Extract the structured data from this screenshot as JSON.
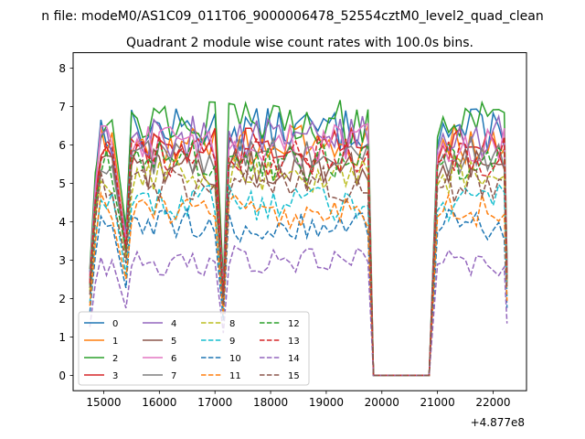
{
  "chart_data": {
    "type": "line",
    "suptitle": "n file: modeM0/AS1C09_011T06_9000006478_52554cztM0_level2_quad_clean",
    "title": "Quadrant 2 module wise count rates with 100.0s bins.",
    "xlabel": "",
    "ylabel": "",
    "x_offset_label": "+4.877e8",
    "xlim": [
      14450,
      22600
    ],
    "ylim": [
      -0.4,
      8.4
    ],
    "xticks": [
      {
        "value": 15000,
        "label": "15000"
      },
      {
        "value": 16000,
        "label": "16000"
      },
      {
        "value": 17000,
        "label": "17000"
      },
      {
        "value": 18000,
        "label": "18000"
      },
      {
        "value": 19000,
        "label": "19000"
      },
      {
        "value": 20000,
        "label": "20000"
      },
      {
        "value": 21000,
        "label": "21000"
      },
      {
        "value": 22000,
        "label": "22000"
      }
    ],
    "yticks": [
      {
        "value": 0,
        "label": "0"
      },
      {
        "value": 1,
        "label": "1"
      },
      {
        "value": 2,
        "label": "2"
      },
      {
        "value": 3,
        "label": "3"
      },
      {
        "value": 4,
        "label": "4"
      },
      {
        "value": 5,
        "label": "5"
      },
      {
        "value": 6,
        "label": "6"
      },
      {
        "value": 7,
        "label": "7"
      },
      {
        "value": 8,
        "label": "8"
      }
    ],
    "grid": false,
    "legend_position": "lower-left",
    "legend_columns": 4,
    "series": [
      {
        "name": "0",
        "color": "#1f77b4",
        "dash": "solid",
        "level": 6.4
      },
      {
        "name": "1",
        "color": "#ff7f0e",
        "dash": "solid",
        "level": 6.0
      },
      {
        "name": "2",
        "color": "#2ca02c",
        "dash": "solid",
        "level": 6.6
      },
      {
        "name": "3",
        "color": "#d62728",
        "dash": "solid",
        "level": 5.9
      },
      {
        "name": "4",
        "color": "#9467bd",
        "dash": "solid",
        "level": 6.2
      },
      {
        "name": "5",
        "color": "#8c564b",
        "dash": "solid",
        "level": 5.4
      },
      {
        "name": "6",
        "color": "#e377c2",
        "dash": "solid",
        "level": 6.0
      },
      {
        "name": "7",
        "color": "#7f7f7f",
        "dash": "solid",
        "level": 5.7
      },
      {
        "name": "8",
        "color": "#bcbd22",
        "dash": "dashed",
        "level": 5.2
      },
      {
        "name": "9",
        "color": "#17becf",
        "dash": "dashed",
        "level": 4.5
      },
      {
        "name": "10",
        "color": "#1f77b4",
        "dash": "dashed",
        "level": 3.9
      },
      {
        "name": "11",
        "color": "#ff7f0e",
        "dash": "dashed",
        "level": 4.3
      },
      {
        "name": "12",
        "color": "#2ca02c",
        "dash": "dashed",
        "level": 5.6
      },
      {
        "name": "13",
        "color": "#d62728",
        "dash": "dashed",
        "level": 5.7
      },
      {
        "name": "14",
        "color": "#9467bd",
        "dash": "dashed",
        "level": 3.0
      },
      {
        "name": "15",
        "color": "#8c564b",
        "dash": "dashed",
        "level": 5.0
      }
    ],
    "segments": [
      {
        "x_start": 14750,
        "x_end": 15200,
        "ramp_from": 2.5
      },
      {
        "x_start": 15400,
        "x_end": 17050,
        "dip_to": 3.5
      },
      {
        "x_start": 17150,
        "x_end": 19750,
        "dip_to": 2.2
      },
      {
        "x_start": 21000,
        "x_end": 22200
      }
    ],
    "gap": {
      "x_start": 19850,
      "x_end": 20850,
      "value": 0
    }
  }
}
